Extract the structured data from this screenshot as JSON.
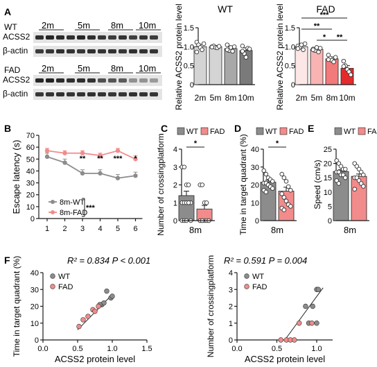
{
  "colors": {
    "gray_light": "#d4d4d4",
    "gray_mid": "#a8a8a8",
    "gray_dark": "#7a7a7a",
    "gray_darker": "#5f5f5f",
    "fad1": "#fde6e6",
    "fad2": "#f9b3b3",
    "fad3": "#f27a7a",
    "fad4": "#e52a2a",
    "wt": "#8c8c8c",
    "fad": "#f28b8b",
    "line": "#1a1a1a"
  },
  "panelA": {
    "letter": "A",
    "blots": [
      {
        "group": "WT",
        "timepoints": [
          "2m",
          "5m",
          "8m",
          "10m"
        ],
        "rows": [
          "ACSS2",
          "β-actin"
        ]
      },
      {
        "group": "FAD",
        "timepoints": [
          "2m",
          "5m",
          "8m",
          "10m"
        ],
        "rows": [
          "ACSS2",
          "β-actin"
        ]
      }
    ],
    "charts": [
      {
        "type": "bar",
        "title": "WT",
        "ylabel": "Relative ACSS2 protein level",
        "categories": [
          "2m",
          "5m",
          "8m",
          "10m"
        ],
        "values": [
          1.0,
          1.0,
          0.95,
          0.9
        ],
        "errors": [
          0.06,
          0.03,
          0.05,
          0.07
        ],
        "ylim": [
          0,
          1.5
        ],
        "yticks": [
          "0",
          "0.5",
          "1.0",
          "1.5"
        ],
        "points": [
          [
            1.12,
            1.05,
            0.98,
            0.92,
            1.08,
            0.86
          ],
          [
            1.0,
            1.02,
            0.98,
            0.97,
            1.01,
            0.99
          ],
          [
            1.05,
            0.9,
            0.98,
            0.88,
            1.0,
            0.92
          ],
          [
            1.02,
            0.82,
            0.72,
            0.96,
            0.94,
            0.88
          ]
        ],
        "sig": []
      },
      {
        "type": "bar",
        "title": "FAD",
        "ylabel": "Relative ACSS2 protein level",
        "categories": [
          "2m",
          "5m",
          "8m",
          "10m"
        ],
        "values": [
          1.0,
          0.93,
          0.68,
          0.43
        ],
        "errors": [
          0.05,
          0.04,
          0.05,
          0.07
        ],
        "ylim": [
          0,
          1.5
        ],
        "yticks": [
          "0",
          "0.5",
          "1.0",
          "1.5"
        ],
        "points": [
          [
            1.02,
            0.98,
            1.05,
            0.92,
            1.08,
            0.95
          ],
          [
            0.94,
            0.9,
            0.98,
            0.86,
            0.96,
            0.92
          ],
          [
            0.78,
            0.7,
            0.64,
            0.6,
            0.72,
            0.66
          ],
          [
            0.62,
            0.5,
            0.4,
            0.34,
            0.26,
            0.48
          ]
        ],
        "sig": [
          {
            "from": 0,
            "to": 3,
            "label": "***"
          },
          {
            "from": 0,
            "to": 2,
            "label": "**"
          },
          {
            "from": 1,
            "to": 2,
            "label": "*"
          },
          {
            "from": 2,
            "to": 3,
            "label": "**"
          }
        ]
      }
    ]
  },
  "panelB": {
    "letter": "B",
    "type": "line",
    "ylabel": "Escape latency (s)",
    "x": [
      1,
      2,
      3,
      4,
      5,
      6
    ],
    "ylim": [
      0,
      70
    ],
    "yticks": [
      "0",
      "10",
      "20",
      "30",
      "40",
      "50",
      "60",
      "70"
    ],
    "series": [
      {
        "name": "8m-WT",
        "values": [
          52,
          47,
          38,
          38,
          34,
          36
        ],
        "errors": [
          3,
          3,
          3,
          3,
          3,
          3
        ]
      },
      {
        "name": "8m-FAD",
        "values": [
          57,
          55,
          55,
          53,
          57,
          50
        ],
        "errors": [
          2,
          2,
          2,
          2,
          2,
          3
        ]
      }
    ],
    "sig": [
      {
        "x": 3,
        "label": "**"
      },
      {
        "x": 4,
        "label": "**"
      },
      {
        "x": 5,
        "label": "***"
      },
      {
        "x": 6,
        "label": "*"
      }
    ],
    "group_sig": "***"
  },
  "panelC": {
    "letter": "C",
    "type": "bar",
    "ylabel": "Number of crossingplatform",
    "xlabel": "8m",
    "legend": [
      "WT",
      "FAD"
    ],
    "values": [
      1.4,
      0.65
    ],
    "errors": [
      0.25,
      0.2
    ],
    "ylim": [
      0,
      4
    ],
    "yticks": [
      "0",
      "1",
      "2",
      "3",
      "4"
    ],
    "points": [
      [
        3,
        3,
        2,
        2,
        1,
        1,
        1,
        1,
        1,
        0,
        0,
        0,
        0
      ],
      [
        2,
        2,
        1,
        1,
        0,
        0,
        0,
        0,
        0,
        0,
        0,
        0
      ]
    ],
    "sig": "*"
  },
  "panelD": {
    "letter": "D",
    "type": "bar",
    "ylabel": "Time in target quadrant (%)",
    "xlabel": "8m",
    "legend": [
      "WT",
      "FAD"
    ],
    "values": [
      21.5,
      16.5
    ],
    "errors": [
      1.2,
      2.2
    ],
    "ylim": [
      0,
      40
    ],
    "yticks": [
      "0",
      "10",
      "20",
      "30",
      "40"
    ],
    "points": [
      [
        28,
        26,
        24,
        23,
        22,
        21,
        21,
        20,
        19,
        18,
        17,
        16
      ],
      [
        26,
        24,
        22,
        19,
        17,
        15,
        13,
        11,
        9,
        8,
        7,
        6
      ]
    ],
    "sig": "*"
  },
  "panelE": {
    "letter": "E",
    "type": "bar",
    "ylabel": "Speed (cm/s)",
    "xlabel": "8m",
    "legend": [
      "WT",
      "FAD"
    ],
    "values": [
      17.2,
      15.5
    ],
    "errors": [
      0.6,
      0.8
    ],
    "ylim": [
      0,
      25
    ],
    "yticks": [
      "0",
      "5",
      "10",
      "15",
      "20",
      "25"
    ],
    "points": [
      [
        21,
        20,
        19,
        18,
        18,
        17,
        17,
        16,
        16,
        15,
        14,
        13
      ],
      [
        20,
        19,
        18,
        17,
        16,
        15,
        15,
        14,
        13,
        12,
        11
      ]
    ]
  },
  "panelF": {
    "letter": "F",
    "charts": [
      {
        "type": "scatter",
        "stats": "R² = 0.834  P < 0.001",
        "ylabel": "Time in target quadrant (%)",
        "xlabel": "ACSS2 protein level",
        "xlim": [
          0,
          1.5
        ],
        "ylim": [
          0,
          40
        ],
        "xticks": [
          "0.0",
          "0.5",
          "1.0",
          "1.5"
        ],
        "yticks": [
          "0",
          "10",
          "20",
          "30",
          "40"
        ],
        "legend": [
          "WT",
          "FAD"
        ],
        "points": [
          {
            "g": 0,
            "x": 0.85,
            "y": 21
          },
          {
            "g": 0,
            "x": 0.88,
            "y": 22
          },
          {
            "g": 0,
            "x": 0.92,
            "y": 29
          },
          {
            "g": 0,
            "x": 0.98,
            "y": 25
          },
          {
            "g": 0,
            "x": 1.0,
            "y": 26
          },
          {
            "g": 0,
            "x": 0.82,
            "y": 21
          },
          {
            "g": 1,
            "x": 0.52,
            "y": 8
          },
          {
            "g": 1,
            "x": 0.58,
            "y": 12
          },
          {
            "g": 1,
            "x": 0.65,
            "y": 14
          },
          {
            "g": 1,
            "x": 0.72,
            "y": 18
          },
          {
            "g": 1,
            "x": 0.75,
            "y": 17
          },
          {
            "g": 1,
            "x": 0.8,
            "y": 20
          }
        ],
        "fit": [
          [
            0.5,
            6
          ],
          [
            1.0,
            27
          ]
        ]
      },
      {
        "type": "scatter",
        "stats": "R² = 0.591  P = 0.004",
        "ylabel": "Number of crossingplatform",
        "xlabel": "ACSS2 protein level",
        "xlim": [
          0,
          1.2
        ],
        "ylim": [
          0,
          4
        ],
        "xticks": [
          "0.0",
          "0.5",
          "1.0"
        ],
        "yticks": [
          "0",
          "1",
          "2",
          "3",
          "4"
        ],
        "legend": [
          "WT",
          "FAD"
        ],
        "points": [
          {
            "g": 0,
            "x": 0.86,
            "y": 2
          },
          {
            "g": 0,
            "x": 0.9,
            "y": 1
          },
          {
            "g": 0,
            "x": 0.95,
            "y": 2
          },
          {
            "g": 0,
            "x": 1.0,
            "y": 3
          },
          {
            "g": 0,
            "x": 1.02,
            "y": 3
          },
          {
            "g": 0,
            "x": 1.0,
            "y": 1
          },
          {
            "g": 1,
            "x": 0.55,
            "y": 0
          },
          {
            "g": 1,
            "x": 0.62,
            "y": 0
          },
          {
            "g": 1,
            "x": 0.67,
            "y": 0
          },
          {
            "g": 1,
            "x": 0.72,
            "y": 0
          },
          {
            "g": 1,
            "x": 0.78,
            "y": 1
          },
          {
            "g": 1,
            "x": 0.94,
            "y": 1
          }
        ],
        "fit": [
          [
            0.6,
            0
          ],
          [
            1.08,
            3.1
          ]
        ]
      }
    ]
  }
}
